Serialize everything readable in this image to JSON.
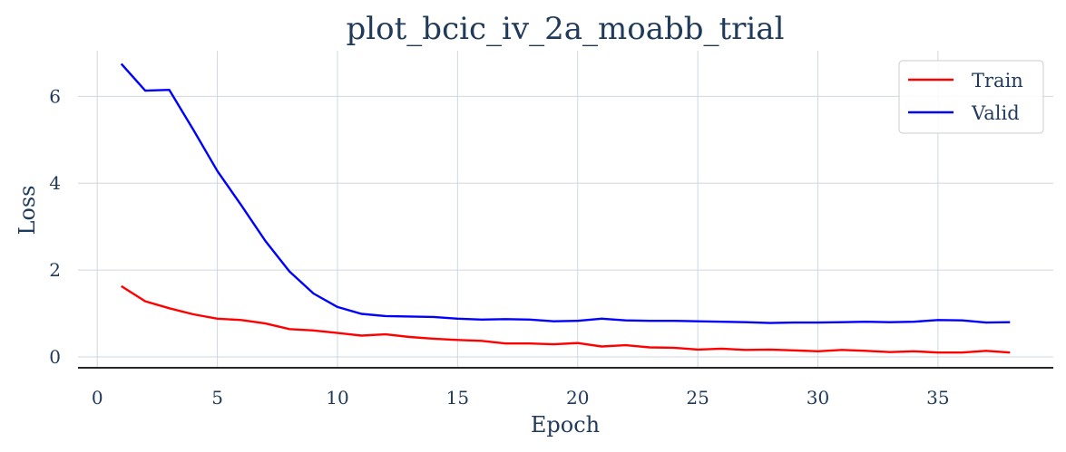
{
  "chart_data": {
    "type": "line",
    "title": "plot_bcic_iv_2a_moabb_trial",
    "xlabel": "Epoch",
    "ylabel": "Loss",
    "xlim": [
      -0.8,
      39.8
    ],
    "ylim": [
      -0.25,
      7.05
    ],
    "xticks": [
      0,
      5,
      10,
      15,
      20,
      25,
      30,
      35
    ],
    "yticks": [
      0,
      2,
      4,
      6
    ],
    "grid": true,
    "legend_position": "top-right",
    "series": [
      {
        "name": "Train",
        "color": "#ff0000",
        "x": [
          1,
          2,
          3,
          4,
          5,
          6,
          7,
          8,
          9,
          10,
          11,
          12,
          13,
          14,
          15,
          16,
          17,
          18,
          19,
          20,
          21,
          22,
          23,
          24,
          25,
          26,
          27,
          28,
          29,
          30,
          31,
          32,
          33,
          34,
          35,
          36,
          37,
          38
        ],
        "values": [
          1.63,
          1.28,
          1.12,
          0.98,
          0.88,
          0.85,
          0.77,
          0.64,
          0.61,
          0.55,
          0.49,
          0.52,
          0.46,
          0.42,
          0.39,
          0.37,
          0.31,
          0.31,
          0.29,
          0.32,
          0.24,
          0.27,
          0.22,
          0.21,
          0.17,
          0.19,
          0.16,
          0.17,
          0.15,
          0.13,
          0.16,
          0.14,
          0.11,
          0.13,
          0.1,
          0.1,
          0.14,
          0.1
        ]
      },
      {
        "name": "Valid",
        "color": "#0000ff",
        "x": [
          1,
          2,
          3,
          4,
          5,
          6,
          7,
          8,
          9,
          10,
          11,
          12,
          13,
          14,
          15,
          16,
          17,
          18,
          19,
          20,
          21,
          22,
          23,
          24,
          25,
          26,
          27,
          28,
          29,
          30,
          31,
          32,
          33,
          34,
          35,
          36,
          37,
          38
        ],
        "values": [
          6.75,
          6.13,
          6.15,
          5.23,
          4.28,
          3.49,
          2.67,
          1.97,
          1.46,
          1.15,
          0.99,
          0.94,
          0.93,
          0.92,
          0.88,
          0.86,
          0.87,
          0.86,
          0.82,
          0.83,
          0.88,
          0.84,
          0.83,
          0.83,
          0.82,
          0.81,
          0.8,
          0.78,
          0.79,
          0.79,
          0.8,
          0.81,
          0.8,
          0.81,
          0.85,
          0.84,
          0.79,
          0.8
        ]
      }
    ]
  }
}
